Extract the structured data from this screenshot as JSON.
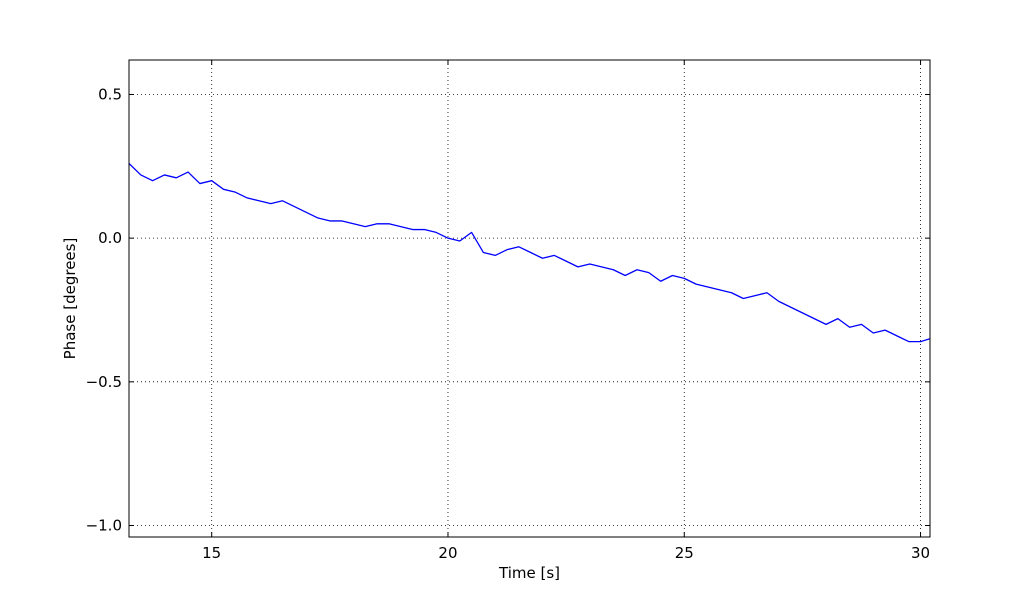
{
  "chart_data": {
    "type": "line",
    "title": "",
    "xlabel": "Time [s]",
    "ylabel": "Phase [degrees]",
    "xlim": [
      13.25,
      30.2
    ],
    "ylim": [
      -1.04,
      0.62
    ],
    "xticks": [
      15,
      20,
      25,
      30
    ],
    "xtick_labels": [
      "15",
      "20",
      "25",
      "30"
    ],
    "yticks": [
      0.5,
      0.0,
      -0.5,
      -1.0
    ],
    "ytick_labels": [
      "0.5",
      "0.0",
      "−0.5",
      "−1.0"
    ],
    "grid": true,
    "line_color": "#0000ff",
    "series": [
      {
        "name": "",
        "x": [
          13.25,
          13.5,
          13.75,
          14.0,
          14.25,
          14.5,
          14.75,
          15.0,
          15.25,
          15.5,
          15.75,
          16.0,
          16.25,
          16.5,
          16.75,
          17.0,
          17.25,
          17.5,
          17.75,
          18.0,
          18.25,
          18.5,
          18.75,
          19.0,
          19.25,
          19.5,
          19.75,
          20.0,
          20.25,
          20.5,
          20.75,
          21.0,
          21.25,
          21.5,
          21.75,
          22.0,
          22.25,
          22.5,
          22.75,
          23.0,
          23.25,
          23.5,
          23.75,
          24.0,
          24.25,
          24.5,
          24.75,
          25.0,
          25.25,
          25.5,
          25.75,
          26.0,
          26.25,
          26.5,
          26.75,
          27.0,
          27.25,
          27.5,
          27.75,
          28.0,
          28.25,
          28.5,
          28.75,
          29.0,
          29.25,
          29.5,
          29.75,
          30.0,
          30.2
        ],
        "y": [
          0.26,
          0.22,
          0.2,
          0.22,
          0.21,
          0.23,
          0.19,
          0.2,
          0.17,
          0.16,
          0.14,
          0.13,
          0.12,
          0.13,
          0.11,
          0.09,
          0.07,
          0.06,
          0.06,
          0.05,
          0.04,
          0.05,
          0.05,
          0.04,
          0.03,
          0.03,
          0.02,
          0.0,
          -0.01,
          0.02,
          -0.05,
          -0.06,
          -0.04,
          -0.03,
          -0.05,
          -0.07,
          -0.06,
          -0.08,
          -0.1,
          -0.09,
          -0.1,
          -0.11,
          -0.13,
          -0.11,
          -0.12,
          -0.15,
          -0.13,
          -0.14,
          -0.16,
          -0.17,
          -0.18,
          -0.19,
          -0.21,
          -0.2,
          -0.19,
          -0.22,
          -0.24,
          -0.26,
          -0.28,
          -0.3,
          -0.28,
          -0.31,
          -0.3,
          -0.33,
          -0.32,
          -0.34,
          -0.36,
          -0.36,
          -0.35
        ]
      }
    ]
  }
}
